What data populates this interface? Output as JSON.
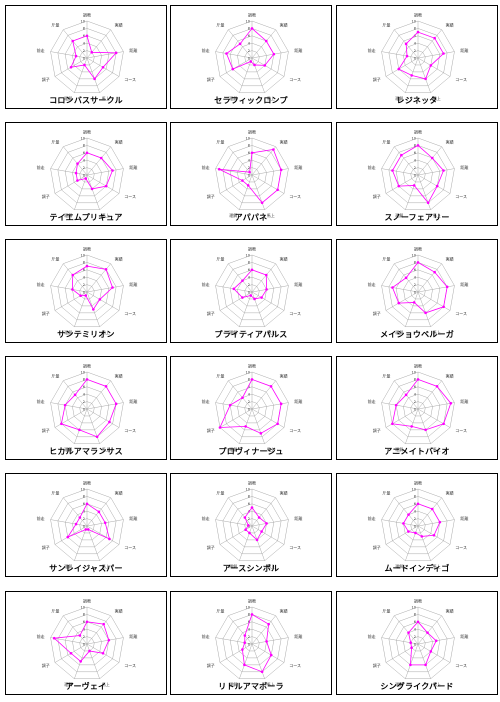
{
  "chart_data": {
    "type": "radar",
    "axes": [
      "調教",
      "実績",
      "距離",
      "コース",
      "馬上",
      "理解",
      "調子",
      "前走",
      "斤量"
    ],
    "ticks": [
      "0",
      "2",
      "4",
      "6",
      "8",
      "10"
    ],
    "range": [
      0,
      10
    ],
    "series_color": "#ff00ff",
    "charts": [
      {
        "name": "コロンバスサークル",
        "values": [
          6,
          2,
          8,
          5,
          6,
          2,
          5,
          3,
          6
        ]
      },
      {
        "name": "セラフィックロンプ",
        "values": [
          8,
          6,
          6,
          4,
          2,
          1,
          6,
          7,
          5
        ]
      },
      {
        "name": "レジネッタ",
        "values": [
          7,
          7,
          7,
          4,
          6,
          5,
          6,
          3,
          5
        ]
      },
      {
        "name": "テイエムプリキュア",
        "values": [
          6,
          6,
          7,
          6,
          4,
          1,
          3,
          3,
          4
        ]
      },
      {
        "name": "アパパネ",
        "values": [
          6,
          9,
          8,
          8,
          8,
          3,
          3,
          9,
          1
        ]
      },
      {
        "name": "スノーフェアリー",
        "values": [
          8,
          6,
          7,
          6,
          8,
          3,
          6,
          7,
          7
        ]
      },
      {
        "name": "サンテミリオン",
        "values": [
          7,
          8,
          7,
          4,
          5,
          1,
          2,
          4,
          6
        ]
      },
      {
        "name": "プライティアパルス",
        "values": [
          6,
          6,
          4,
          3,
          2,
          1,
          3,
          5,
          4
        ]
      },
      {
        "name": "メイショウベルーガ",
        "values": [
          8,
          7,
          8,
          8,
          6,
          3,
          6,
          7,
          5
        ]
      },
      {
        "name": "ヒカルアマランサス",
        "values": [
          8,
          8,
          8,
          7,
          8,
          6,
          8,
          6,
          5
        ]
      },
      {
        "name": "プロヴィナージュ",
        "values": [
          8,
          8,
          8,
          8,
          7,
          5,
          10,
          6,
          4
        ]
      },
      {
        "name": "アニメイトバイオ",
        "values": [
          8,
          8,
          9,
          8,
          6,
          5,
          8,
          6,
          5
        ]
      },
      {
        "name": "サンレイジャスパー",
        "values": [
          6,
          5,
          5,
          7,
          1,
          1,
          6,
          3,
          3
        ]
      },
      {
        "name": "アースシンボル",
        "values": [
          5,
          3,
          4,
          3,
          4,
          2,
          2,
          1,
          3
        ]
      },
      {
        "name": "ムードインディゴ",
        "values": [
          6,
          6,
          6,
          5,
          3,
          2,
          3,
          4,
          4
        ]
      },
      {
        "name": "アーヴェイ",
        "values": [
          6,
          7,
          6,
          5,
          2,
          5,
          5,
          9,
          3
        ]
      },
      {
        "name": "リトルアマポーラ",
        "values": [
          8,
          7,
          4,
          6,
          8,
          6,
          3,
          2,
          3
        ]
      },
      {
        "name": "シングライクバード",
        "values": [
          6,
          4,
          5,
          4,
          6,
          6,
          2,
          2,
          4
        ]
      }
    ]
  }
}
